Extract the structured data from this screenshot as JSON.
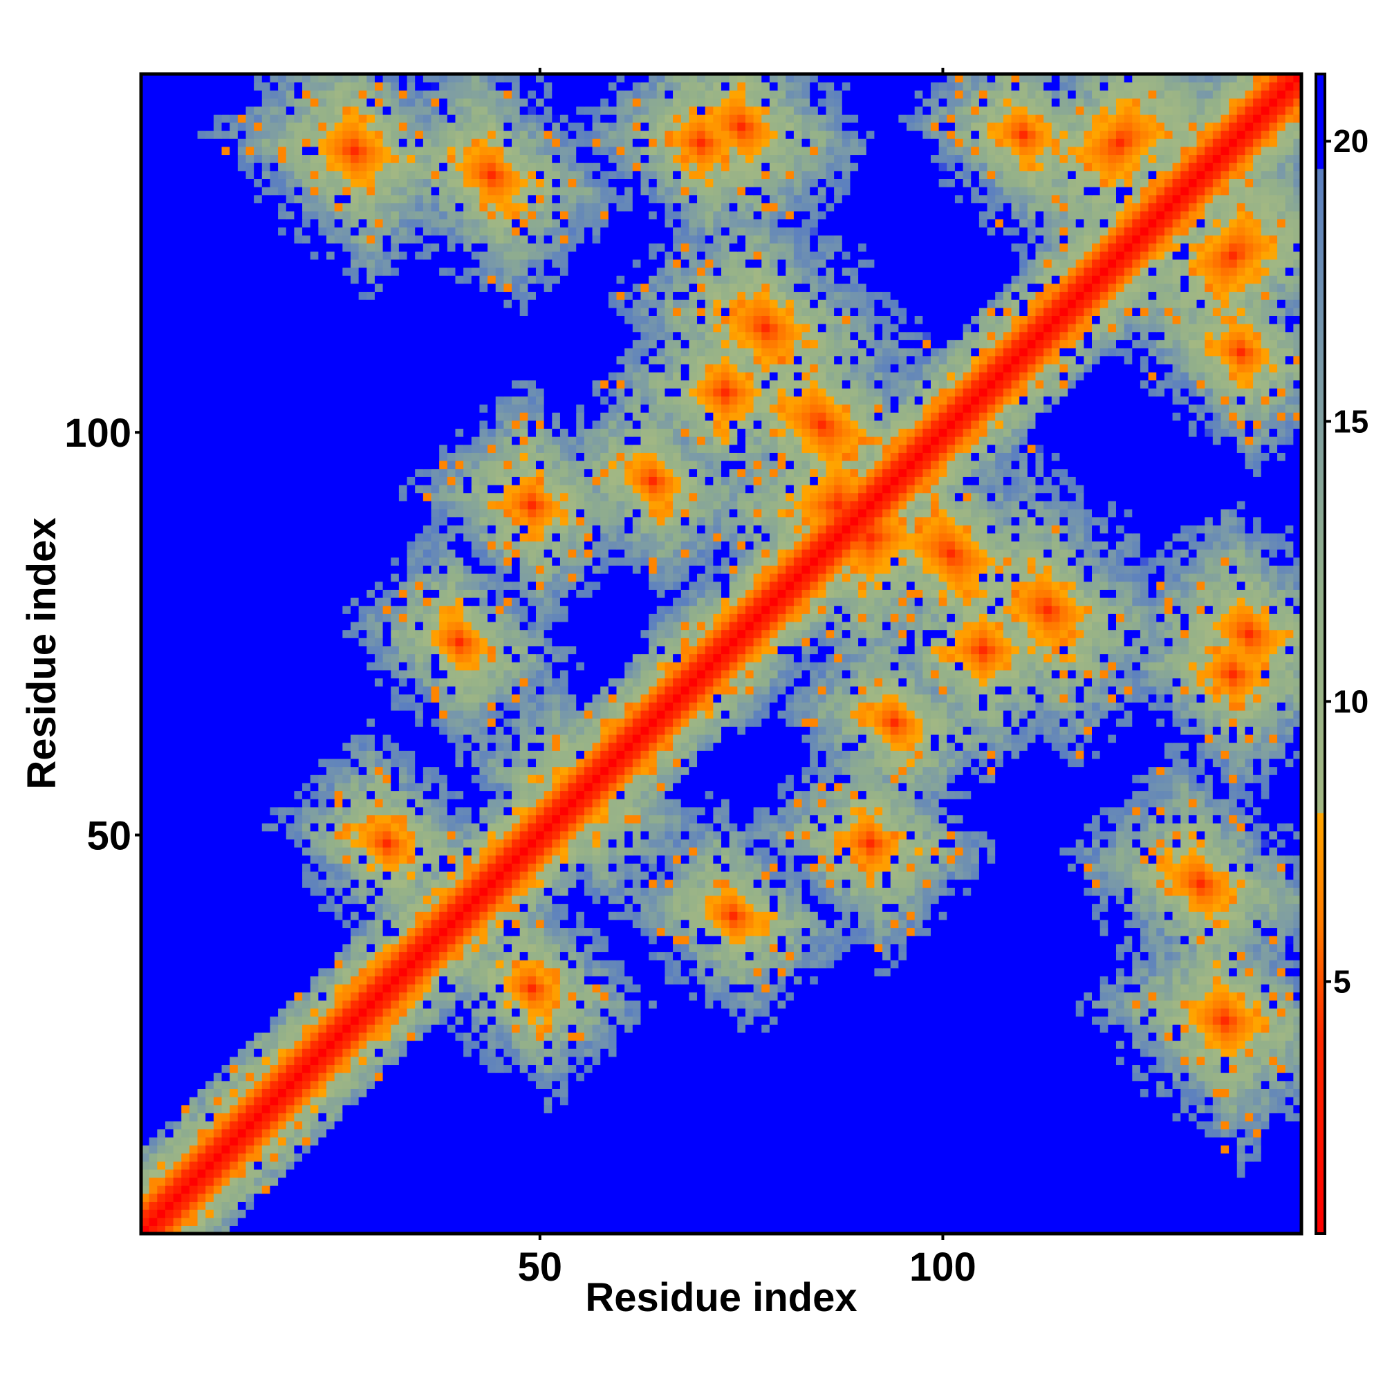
{
  "chart_data": {
    "type": "heatmap",
    "title": "",
    "xlabel": "Residue index",
    "ylabel": "Residue index",
    "xlim": [
      1,
      144
    ],
    "ylim": [
      1,
      144
    ],
    "xticks": [
      {
        "value": 50,
        "label": "50"
      },
      {
        "value": 100,
        "label": "100"
      }
    ],
    "yticks": [
      {
        "value": 50,
        "label": "50"
      },
      {
        "value": 100,
        "label": "100"
      }
    ],
    "colorbar": {
      "range": [
        0.5,
        21.2
      ],
      "ticks": [
        {
          "value": 5,
          "label": "5"
        },
        {
          "value": 10,
          "label": "10"
        },
        {
          "value": 15,
          "label": "15"
        },
        {
          "value": 20,
          "label": "20"
        }
      ],
      "stops": [
        {
          "value": 0.5,
          "color": "#ff0000"
        },
        {
          "value": 4.0,
          "color": "#ff2a00"
        },
        {
          "value": 6.0,
          "color": "#ff7a00"
        },
        {
          "value": 8.0,
          "color": "#ffa500"
        },
        {
          "value": 8.01,
          "color": "#a3b883"
        },
        {
          "value": 12.0,
          "color": "#93b08a"
        },
        {
          "value": 16.0,
          "color": "#7a9aa8"
        },
        {
          "value": 19.5,
          "color": "#5b7fc0"
        },
        {
          "value": 19.51,
          "color": "#0000ff"
        },
        {
          "value": 21.2,
          "color": "#0000ff"
        }
      ]
    },
    "value_description": "Pairwise distance between residues i and j; values above the cutoff are shown as saturated blue",
    "diagonal": {
      "value": 0.5
    },
    "structure_description": "Symmetric distance map. Red diagonal; orange/green bands for helices, off-diagonal contacts and anti-diagonal cross near residue 55; large blue regions of distant pairs.",
    "contact_blobs": [
      {
        "i": 55,
        "j": 55,
        "orient": "anti",
        "length": 14,
        "width": 7
      },
      {
        "i": 31,
        "j": 49,
        "orient": "anti",
        "length": 12,
        "width": 8
      },
      {
        "i": 76,
        "j": 77,
        "orient": "anti",
        "length": 8,
        "width": 10
      },
      {
        "i": 46,
        "j": 28,
        "orient": "anti",
        "length": 14,
        "width": 7
      },
      {
        "i": 85,
        "j": 101,
        "orient": "anti",
        "length": 18,
        "width": 10
      },
      {
        "i": 78,
        "j": 113,
        "orient": "anti",
        "length": 16,
        "width": 10
      },
      {
        "i": 106,
        "j": 86,
        "orient": "anti",
        "length": 14,
        "width": 9
      },
      {
        "i": 73,
        "j": 105,
        "orient": "anti",
        "length": 12,
        "width": 10
      },
      {
        "i": 75,
        "j": 138,
        "orient": "anti",
        "length": 14,
        "width": 9
      },
      {
        "i": 105,
        "j": 85,
        "orient": "anti",
        "length": 10,
        "width": 9
      },
      {
        "i": 122,
        "j": 136,
        "orient": "para",
        "length": 18,
        "width": 10
      },
      {
        "i": 136,
        "j": 122,
        "orient": "para",
        "length": 16,
        "width": 8
      },
      {
        "i": 110,
        "j": 137,
        "orient": "anti",
        "length": 12,
        "width": 8
      },
      {
        "i": 140,
        "j": 77,
        "orient": "anti",
        "length": 12,
        "width": 8
      },
      {
        "i": 138,
        "j": 48,
        "orient": "anti",
        "length": 12,
        "width": 9
      },
      {
        "i": 27,
        "j": 135,
        "orient": "anti",
        "length": 14,
        "width": 10
      },
      {
        "i": 44,
        "j": 132,
        "orient": "anti",
        "length": 14,
        "width": 9
      },
      {
        "i": 70,
        "j": 136,
        "orient": "anti",
        "length": 12,
        "width": 9
      },
      {
        "i": 87,
        "j": 91,
        "orient": "anti",
        "length": 14,
        "width": 14
      },
      {
        "i": 49,
        "j": 91,
        "orient": "anti",
        "length": 12,
        "width": 9
      },
      {
        "i": 64,
        "j": 94,
        "orient": "anti",
        "length": 12,
        "width": 8
      },
      {
        "i": 40,
        "j": 74,
        "orient": "anti",
        "length": 12,
        "width": 8
      },
      {
        "i": 56,
        "j": 35,
        "orient": "anti",
        "length": 14,
        "width": 8
      },
      {
        "i": 95,
        "j": 60,
        "orient": "anti",
        "length": 14,
        "width": 8
      },
      {
        "i": 92,
        "j": 43,
        "orient": "anti",
        "length": 10,
        "width": 8
      },
      {
        "i": 128,
        "j": 40,
        "orient": "anti",
        "length": 12,
        "width": 8
      },
      {
        "i": 131,
        "j": 44,
        "orient": "anti",
        "length": 12,
        "width": 9
      }
    ]
  }
}
